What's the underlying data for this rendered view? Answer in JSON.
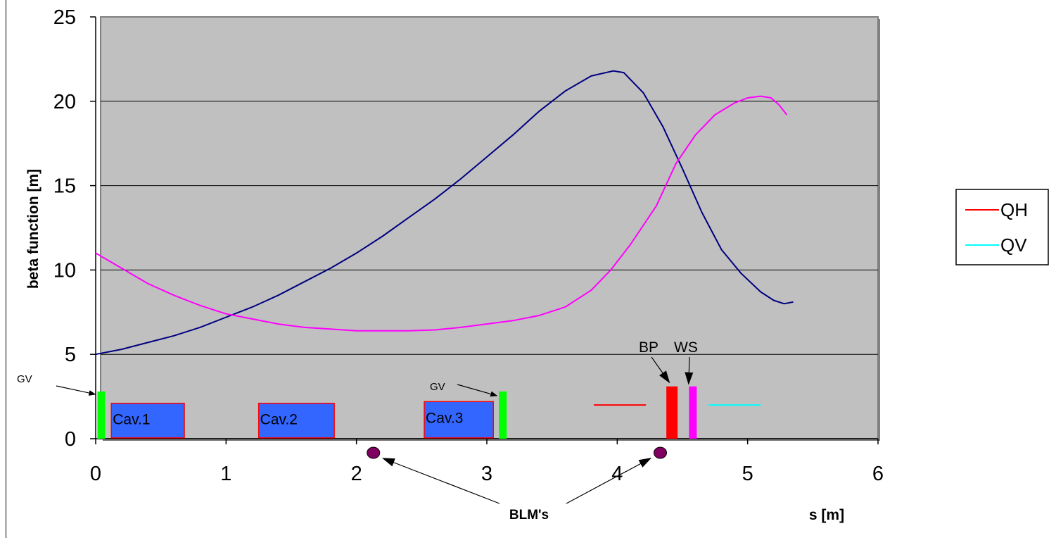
{
  "chart_data": {
    "type": "line",
    "title": "",
    "xlabel": "s [m]",
    "ylabel": "beta function [m]",
    "xlim": [
      0,
      6
    ],
    "ylim": [
      0,
      25
    ],
    "x_ticks": [
      "0",
      "1",
      "2",
      "3",
      "4",
      "5",
      "6"
    ],
    "y_ticks": [
      "0",
      "5",
      "10",
      "15",
      "20",
      "25"
    ],
    "grid": "horizontal",
    "plot_background": "#c0c0c0",
    "series": [
      {
        "color": "#000080",
        "points": [
          [
            0.0,
            5.0
          ],
          [
            0.2,
            5.3
          ],
          [
            0.4,
            5.7
          ],
          [
            0.6,
            6.1
          ],
          [
            0.8,
            6.6
          ],
          [
            1.0,
            7.2
          ],
          [
            1.2,
            7.8
          ],
          [
            1.4,
            8.5
          ],
          [
            1.6,
            9.3
          ],
          [
            1.8,
            10.1
          ],
          [
            2.0,
            11.0
          ],
          [
            2.2,
            12.0
          ],
          [
            2.4,
            13.1
          ],
          [
            2.6,
            14.2
          ],
          [
            2.8,
            15.4
          ],
          [
            3.0,
            16.7
          ],
          [
            3.2,
            18.0
          ],
          [
            3.4,
            19.4
          ],
          [
            3.6,
            20.6
          ],
          [
            3.8,
            21.5
          ],
          [
            3.97,
            21.8
          ],
          [
            4.05,
            21.7
          ],
          [
            4.2,
            20.5
          ],
          [
            4.35,
            18.5
          ],
          [
            4.5,
            16.0
          ],
          [
            4.65,
            13.4
          ],
          [
            4.8,
            11.2
          ],
          [
            4.95,
            9.8
          ],
          [
            5.1,
            8.7
          ],
          [
            5.2,
            8.2
          ],
          [
            5.28,
            8.0
          ],
          [
            5.35,
            8.1
          ]
        ]
      },
      {
        "color": "#ff00ff",
        "points": [
          [
            0.0,
            11.0
          ],
          [
            0.2,
            10.1
          ],
          [
            0.4,
            9.2
          ],
          [
            0.6,
            8.5
          ],
          [
            0.8,
            7.9
          ],
          [
            1.0,
            7.4
          ],
          [
            1.2,
            7.1
          ],
          [
            1.4,
            6.8
          ],
          [
            1.6,
            6.6
          ],
          [
            1.8,
            6.5
          ],
          [
            2.0,
            6.4
          ],
          [
            2.2,
            6.4
          ],
          [
            2.4,
            6.4
          ],
          [
            2.6,
            6.45
          ],
          [
            2.8,
            6.6
          ],
          [
            3.0,
            6.8
          ],
          [
            3.2,
            7.0
          ],
          [
            3.4,
            7.3
          ],
          [
            3.6,
            7.8
          ],
          [
            3.8,
            8.8
          ],
          [
            3.95,
            10.0
          ],
          [
            4.1,
            11.5
          ],
          [
            4.3,
            13.8
          ],
          [
            4.45,
            16.3
          ],
          [
            4.6,
            18.0
          ],
          [
            4.75,
            19.2
          ],
          [
            4.9,
            19.9
          ],
          [
            5.0,
            20.2
          ],
          [
            5.1,
            20.3
          ],
          [
            5.18,
            20.2
          ],
          [
            5.24,
            19.8
          ],
          [
            5.3,
            19.2
          ]
        ]
      }
    ],
    "legend": {
      "placement": "right",
      "entries": [
        {
          "label": "QH",
          "color": "#ff0000"
        },
        {
          "label": "QV",
          "color": "#00ffff"
        }
      ]
    },
    "components": {
      "cavities": [
        {
          "label": "Cav.1",
          "s_start": 0.12,
          "s_end": 0.68,
          "height": 2.1
        },
        {
          "label": "Cav.2",
          "s_start": 1.25,
          "s_end": 1.83,
          "height": 2.1
        },
        {
          "label": "Cav.3",
          "s_start": 2.52,
          "s_end": 3.05,
          "height": 2.2
        }
      ],
      "gate_valves": [
        {
          "label": "GV",
          "s": 0.04,
          "height": 2.8,
          "color": "#00ff00"
        },
        {
          "label": "GV",
          "s": 3.12,
          "height": 2.8,
          "color": "#00ff00"
        }
      ],
      "quad_markers": [
        {
          "series": "QH",
          "s_start": 3.82,
          "s_end": 4.22,
          "y": 2.0,
          "color": "#ff0000"
        },
        {
          "series": "QV",
          "s_start": 4.7,
          "s_end": 5.1,
          "y": 2.0,
          "color": "#00ffff"
        }
      ],
      "diagnostics": [
        {
          "label": "BP",
          "s": 4.42,
          "height": 3.1,
          "color": "#ff0000"
        },
        {
          "label": "WS",
          "s": 4.58,
          "height": 3.1,
          "color": "#ff00ff"
        }
      ],
      "blm": {
        "label": "BLM's",
        "color": "#800060",
        "positions": [
          2.13,
          4.33
        ]
      }
    }
  }
}
